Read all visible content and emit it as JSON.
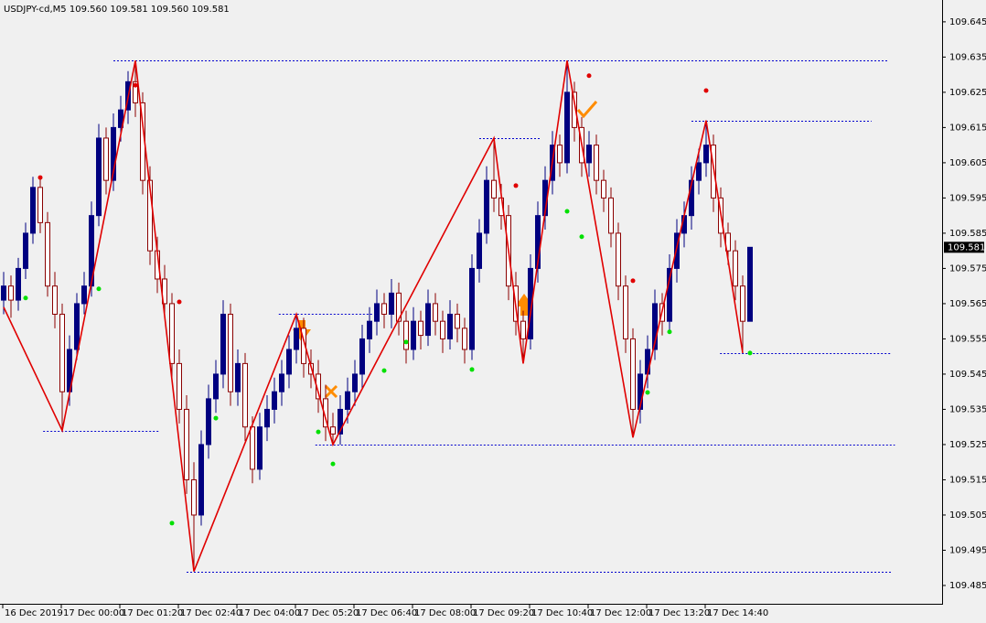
{
  "chart_data": {
    "type": "candlestick",
    "title": "USDJPY-cd,M5  109.560 109.581 109.560 109.581",
    "current_price": 109.581,
    "ylim": [
      109.4798,
      109.6512
    ],
    "yticks": [
      109.645,
      109.635,
      109.625,
      109.615,
      109.605,
      109.595,
      109.585,
      109.575,
      109.565,
      109.555,
      109.545,
      109.535,
      109.525,
      109.515,
      109.505,
      109.495,
      109.485
    ],
    "time_labels": [
      "16 Dec 2019",
      "17 Dec 00:00",
      "17 Dec 01:20",
      "17 Dec 02:40",
      "17 Dec 04:00",
      "17 Dec 05:20",
      "17 Dec 06:40",
      "17 Dec 08:00",
      "17 Dec 09:20",
      "17 Dec 10:40",
      "17 Dec 12:00",
      "17 Dec 13:20",
      "17 Dec 14:40"
    ],
    "time_label_x": [
      0,
      8,
      16,
      24,
      32,
      40,
      48,
      56,
      64,
      72,
      80,
      88,
      96
    ],
    "bull_color": "#000080",
    "bear_color": "#ffffff",
    "bear_edge": "#8b0000",
    "candles": [
      [
        109.566,
        109.574,
        109.562,
        109.57
      ],
      [
        109.57,
        109.573,
        109.561,
        109.566
      ],
      [
        109.566,
        109.578,
        109.563,
        109.575
      ],
      [
        109.575,
        109.588,
        109.572,
        109.585
      ],
      [
        109.585,
        109.601,
        109.582,
        109.598
      ],
      [
        109.598,
        109.601,
        109.585,
        109.588
      ],
      [
        109.588,
        109.591,
        109.567,
        109.57
      ],
      [
        109.57,
        109.574,
        109.558,
        109.562
      ],
      [
        109.562,
        109.565,
        109.529,
        109.54
      ],
      [
        109.54,
        109.556,
        109.536,
        109.552
      ],
      [
        109.552,
        109.568,
        109.549,
        109.565
      ],
      [
        109.565,
        109.574,
        109.562,
        109.57
      ],
      [
        109.57,
        109.594,
        109.567,
        109.59
      ],
      [
        109.59,
        109.616,
        109.587,
        109.612
      ],
      [
        109.612,
        109.615,
        109.596,
        109.6
      ],
      [
        109.6,
        109.619,
        109.597,
        109.615
      ],
      [
        109.615,
        109.624,
        109.611,
        109.62
      ],
      [
        109.62,
        109.631,
        109.616,
        109.628
      ],
      [
        109.628,
        109.634,
        109.618,
        109.622
      ],
      [
        109.622,
        109.625,
        109.596,
        109.6
      ],
      [
        109.6,
        109.604,
        109.576,
        109.58
      ],
      [
        109.58,
        109.584,
        109.568,
        109.572
      ],
      [
        109.572,
        109.576,
        109.561,
        109.565
      ],
      [
        109.565,
        109.568,
        109.544,
        109.548
      ],
      [
        109.548,
        109.552,
        109.531,
        109.535
      ],
      [
        109.535,
        109.539,
        109.511,
        109.515
      ],
      [
        109.515,
        109.52,
        109.489,
        109.505
      ],
      [
        109.505,
        109.529,
        109.502,
        109.525
      ],
      [
        109.525,
        109.542,
        109.521,
        109.538
      ],
      [
        109.538,
        109.549,
        109.534,
        109.545
      ],
      [
        109.545,
        109.566,
        109.541,
        109.562
      ],
      [
        109.562,
        109.565,
        109.536,
        109.54
      ],
      [
        109.54,
        109.552,
        109.536,
        109.548
      ],
      [
        109.548,
        109.551,
        109.526,
        109.53
      ],
      [
        109.53,
        109.533,
        109.514,
        109.518
      ],
      [
        109.518,
        109.534,
        109.515,
        109.53
      ],
      [
        109.53,
        109.539,
        109.526,
        109.535
      ],
      [
        109.535,
        109.544,
        109.531,
        109.54
      ],
      [
        109.54,
        109.549,
        109.536,
        109.545
      ],
      [
        109.545,
        109.556,
        109.541,
        109.552
      ],
      [
        109.552,
        109.562,
        109.548,
        109.558
      ],
      [
        109.558,
        109.561,
        109.544,
        109.548
      ],
      [
        109.548,
        109.552,
        109.541,
        109.545
      ],
      [
        109.545,
        109.549,
        109.534,
        109.538
      ],
      [
        109.538,
        109.542,
        109.526,
        109.53
      ],
      [
        109.53,
        109.534,
        109.525,
        109.528
      ],
      [
        109.528,
        109.539,
        109.525,
        109.535
      ],
      [
        109.535,
        109.544,
        109.531,
        109.54
      ],
      [
        109.54,
        109.549,
        109.536,
        109.545
      ],
      [
        109.545,
        109.559,
        109.541,
        109.555
      ],
      [
        109.555,
        109.564,
        109.551,
        109.56
      ],
      [
        109.56,
        109.569,
        109.556,
        109.565
      ],
      [
        109.565,
        109.568,
        109.558,
        109.562
      ],
      [
        109.562,
        109.572,
        109.558,
        109.568
      ],
      [
        109.568,
        109.571,
        109.556,
        109.56
      ],
      [
        109.56,
        109.563,
        109.548,
        109.552
      ],
      [
        109.552,
        109.564,
        109.549,
        109.56
      ],
      [
        109.56,
        109.563,
        109.552,
        109.556
      ],
      [
        109.556,
        109.569,
        109.553,
        109.565
      ],
      [
        109.565,
        109.568,
        109.556,
        109.56
      ],
      [
        109.56,
        109.563,
        109.551,
        109.555
      ],
      [
        109.555,
        109.566,
        109.552,
        109.562
      ],
      [
        109.562,
        109.565,
        109.554,
        109.558
      ],
      [
        109.558,
        109.561,
        109.548,
        109.552
      ],
      [
        109.552,
        109.579,
        109.549,
        109.575
      ],
      [
        109.575,
        109.589,
        109.571,
        109.585
      ],
      [
        109.585,
        109.604,
        109.582,
        109.6
      ],
      [
        109.6,
        109.612,
        109.591,
        109.595
      ],
      [
        109.595,
        109.599,
        109.586,
        109.59
      ],
      [
        109.59,
        109.593,
        109.566,
        109.57
      ],
      [
        109.57,
        109.574,
        109.556,
        109.56
      ],
      [
        109.56,
        109.563,
        109.548,
        109.555
      ],
      [
        109.555,
        109.579,
        109.552,
        109.575
      ],
      [
        109.575,
        109.594,
        109.571,
        109.59
      ],
      [
        109.59,
        109.604,
        109.586,
        109.6
      ],
      [
        109.6,
        109.614,
        109.596,
        109.61
      ],
      [
        109.61,
        109.613,
        109.601,
        109.605
      ],
      [
        109.605,
        109.634,
        109.602,
        109.625
      ],
      [
        109.625,
        109.628,
        109.611,
        109.615
      ],
      [
        109.615,
        109.618,
        109.601,
        109.605
      ],
      [
        109.605,
        109.614,
        109.601,
        109.61
      ],
      [
        109.61,
        109.613,
        109.596,
        109.6
      ],
      [
        109.6,
        109.603,
        109.591,
        109.595
      ],
      [
        109.595,
        109.598,
        109.581,
        109.585
      ],
      [
        109.585,
        109.588,
        109.566,
        109.57
      ],
      [
        109.57,
        109.573,
        109.551,
        109.555
      ],
      [
        109.555,
        109.558,
        109.527,
        109.535
      ],
      [
        109.535,
        109.549,
        109.531,
        109.545
      ],
      [
        109.545,
        109.556,
        109.541,
        109.552
      ],
      [
        109.552,
        109.569,
        109.549,
        109.565
      ],
      [
        109.565,
        109.568,
        109.556,
        109.56
      ],
      [
        109.56,
        109.579,
        109.557,
        109.575
      ],
      [
        109.575,
        109.589,
        109.571,
        109.585
      ],
      [
        109.585,
        109.594,
        109.581,
        109.59
      ],
      [
        109.59,
        109.604,
        109.586,
        109.6
      ],
      [
        109.6,
        109.609,
        109.596,
        109.605
      ],
      [
        109.605,
        109.617,
        109.601,
        109.61
      ],
      [
        109.61,
        109.613,
        109.591,
        109.595
      ],
      [
        109.595,
        109.598,
        109.581,
        109.585
      ],
      [
        109.585,
        109.588,
        109.576,
        109.58
      ],
      [
        109.58,
        109.583,
        109.566,
        109.57
      ],
      [
        109.57,
        109.573,
        109.551,
        109.56
      ],
      [
        109.56,
        109.581,
        109.56,
        109.581
      ]
    ],
    "zigzag": {
      "color": "#e00000",
      "x": [
        0,
        8,
        18,
        26,
        40,
        45,
        67,
        71,
        77,
        86,
        96,
        101
      ],
      "values": [
        109.564,
        109.529,
        109.634,
        109.489,
        109.562,
        109.525,
        109.612,
        109.548,
        109.634,
        109.527,
        109.617,
        109.551
      ]
    },
    "levels": {
      "color": "#0000cd",
      "values": [
        109.634,
        109.529,
        109.489,
        109.562,
        109.525,
        109.612,
        109.617,
        109.551
      ],
      "from": [
        15,
        5.4,
        25,
        37.6,
        42.6,
        65,
        94,
        97.9
      ],
      "to": [
        120.8,
        21.4,
        121.4,
        50.5,
        121.8,
        73.3,
        118.6,
        121.4
      ]
    },
    "up_dots": {
      "color": "#e00000",
      "x": [
        5,
        18,
        24,
        70,
        80,
        86,
        96
      ],
      "values": [
        109.6008,
        109.627,
        109.5655,
        109.5985,
        109.6297,
        109.5715,
        109.6255
      ]
    },
    "down_dots": {
      "color": "#00e000",
      "x": [
        3,
        13,
        23,
        29,
        43,
        45,
        52,
        55,
        64,
        77,
        79,
        88,
        91,
        102
      ],
      "values": [
        109.5666,
        109.5692,
        109.5027,
        109.5325,
        109.5286,
        109.5195,
        109.546,
        109.5541,
        109.5463,
        109.5912,
        109.584,
        109.5398,
        109.557,
        109.551
      ]
    }
  }
}
